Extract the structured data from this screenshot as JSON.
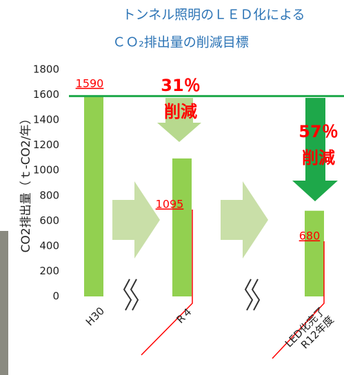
{
  "chart_data": {
    "type": "bar",
    "title": [
      "トンネル照明のＬＥＤ化による",
      "ＣＯ₂排出量の削減目標"
    ],
    "y_label": "CO2排出量（ｔ-CO2/年）",
    "categories": [
      "H30",
      "R４",
      "LED化完了\nR12年度"
    ],
    "values": [
      1590,
      1095,
      680
    ],
    "color": "#92d050",
    "reference_color": "#1ea84a",
    "ylim": [
      0,
      1800
    ],
    "yticks": [
      0,
      200,
      400,
      600,
      800,
      1000,
      1200,
      1400,
      1600,
      1800
    ],
    "annotations": [
      "31％",
      "削減",
      "57％",
      "削減"
    ]
  }
}
